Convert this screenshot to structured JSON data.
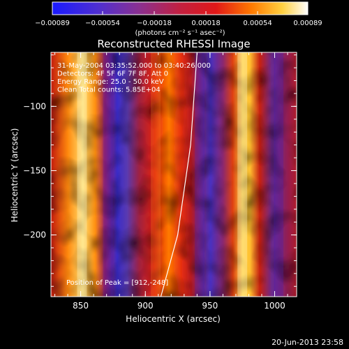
{
  "chart_data": {
    "type": "heatmap",
    "title": "Reconstructed RHESSI Image",
    "xlabel": "Heliocentric X (arcsec)",
    "ylabel": "Heliocentric Y (arcsec)",
    "xlim": [
      827,
      1017
    ],
    "ylim": [
      -248,
      -58
    ],
    "x_ticks": [
      850,
      900,
      950,
      1000
    ],
    "y_ticks": [
      -100,
      -150,
      -200
    ],
    "x_tick_labels": [
      "850",
      "900",
      "950",
      "1000"
    ],
    "y_tick_labels": [
      "−100",
      "−150",
      "−200"
    ],
    "colorbar": {
      "range": [
        -0.00089,
        0.00089
      ],
      "ticks": [
        -0.00089,
        -0.00054,
        -0.00018,
        0.00018,
        0.00054,
        0.00089
      ],
      "tick_labels": [
        "−0.00089",
        "−0.00054",
        "−0.00018",
        "0.00018",
        "0.00054",
        "0.00089"
      ],
      "units": "(photons cm⁻² s⁻¹ asec⁻²)",
      "colors": [
        "#1a1aff",
        "#6a3aa8",
        "#a8307a",
        "#d81c1c",
        "#ff7a00",
        "#ffd040",
        "#ffffff"
      ]
    },
    "stripes": [
      {
        "x": 851,
        "value": 0.0008
      },
      {
        "x": 871,
        "value": -0.00075
      },
      {
        "x": 908,
        "value": 0.00055
      },
      {
        "x": 942,
        "value": -0.0006
      },
      {
        "x": 975,
        "value": 0.00085
      },
      {
        "x": 1003,
        "value": -0.0003
      }
    ],
    "limb": [
      [
        912,
        -248
      ],
      [
        925,
        -200
      ],
      [
        935,
        -130
      ],
      [
        940,
        -58
      ]
    ],
    "annotations": [
      "31-May-2004 03:35:52.000 to 03:40:26.000",
      "Detectors: 4F 5F 6F 7F 8F, Att 0",
      "Energy Range: 25.0 - 50.0 keV",
      "Clean     Total counts: 5.85E+04"
    ],
    "peak_label": "Position of Peak = [912,-248]"
  },
  "footer": {
    "timestamp": "20-Jun-2013 23:58"
  }
}
